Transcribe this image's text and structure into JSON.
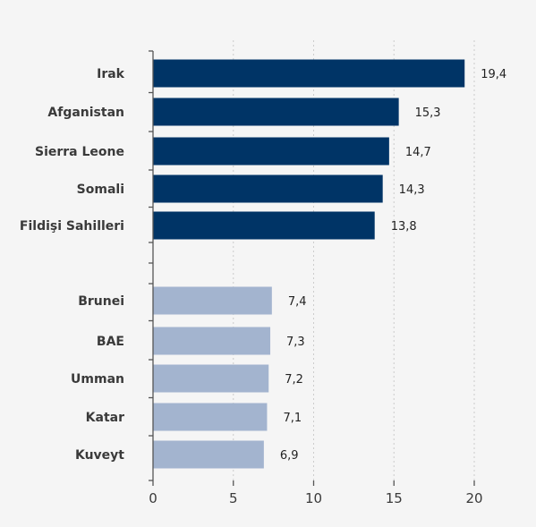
{
  "chart_data": {
    "type": "bar",
    "orientation": "horizontal",
    "categories": [
      "Irak",
      "Afganistan",
      "Sierra Leone",
      "Somali",
      "Fildişi Sahilleri",
      "Brunei",
      "BAE",
      "Umman",
      "Katar",
      "Kuveyt"
    ],
    "value_labels": [
      "19,4",
      "15,3",
      "14,7",
      "14,3",
      "13,8",
      "7,4",
      "7,3",
      "7,2",
      "7,1",
      "6,9"
    ],
    "series": [
      {
        "values": [
          19.4,
          15.3,
          14.7,
          14.3,
          13.8,
          null,
          null,
          null,
          null,
          null
        ],
        "color": "#003466"
      },
      {
        "values": [
          null,
          null,
          null,
          null,
          null,
          7.4,
          7.3,
          7.2,
          7.1,
          6.9
        ],
        "color": "#a3b4cf"
      }
    ],
    "xlim": [
      0,
      20
    ],
    "xticks": [
      0,
      5,
      10,
      15,
      20
    ],
    "xticklabels": [
      "0",
      "5",
      "10",
      "15",
      "20"
    ],
    "grid": "vertical dotted",
    "legend": "none",
    "title": "",
    "xlabel": "",
    "ylabel": ""
  },
  "colors": {
    "background": "#f5f5f5",
    "axis": "#555555",
    "grid": "#cccccc"
  }
}
